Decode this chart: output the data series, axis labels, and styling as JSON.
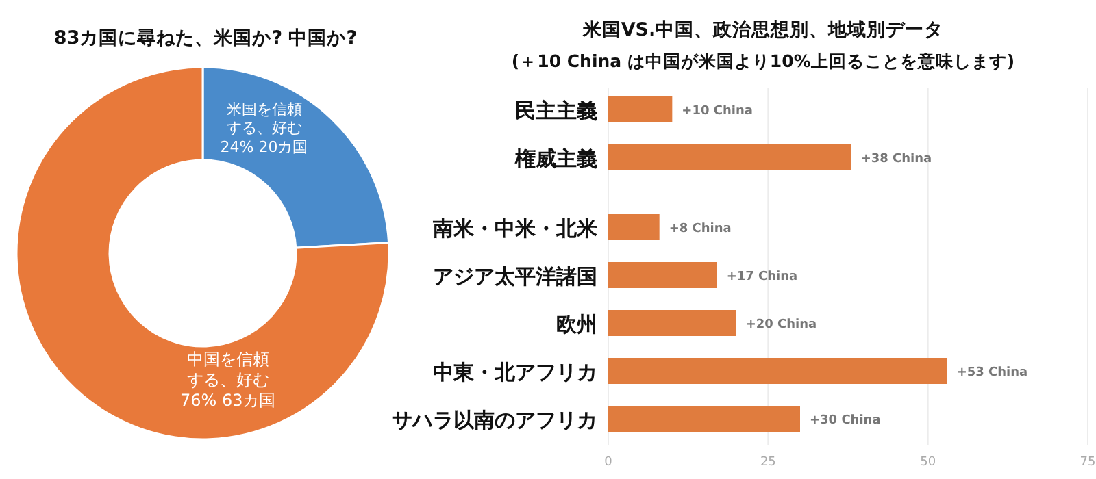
{
  "chart_data": [
    {
      "type": "donut",
      "title": "83カ国に尋ねた、米国か? 中国か?",
      "categories": [
        "米国を信頼する、好む",
        "中国を信頼する、好む"
      ],
      "values": [
        20,
        63
      ],
      "value_labels": [
        "24% 20カ国",
        "76% 63カ国"
      ],
      "colors": [
        "#4a8bcb",
        "#e8793a"
      ]
    },
    {
      "type": "bar",
      "orientation": "horizontal",
      "title": "米国VS.中国、政治思想別、地域別データ",
      "subtitle": "(＋10 China は中国が米国より10%上回ることを意味します)",
      "categories": [
        "民主主義",
        "権威主義",
        "南米・中米・北米",
        "アジア太平洋諸国",
        "欧州",
        "中東・北アフリカ",
        "サハラ以南のアフリカ"
      ],
      "values": [
        10,
        38,
        8,
        17,
        20,
        53,
        30
      ],
      "value_labels": [
        "+10 China",
        "+38 China",
        "+8 China",
        "+17 China",
        "+20 China",
        "+53 China",
        "+30 China"
      ],
      "color": "#e07c3e",
      "xlim": [
        0,
        75
      ],
      "xticks": [
        0,
        25,
        50,
        75
      ],
      "grid": "x",
      "legend": false
    }
  ]
}
